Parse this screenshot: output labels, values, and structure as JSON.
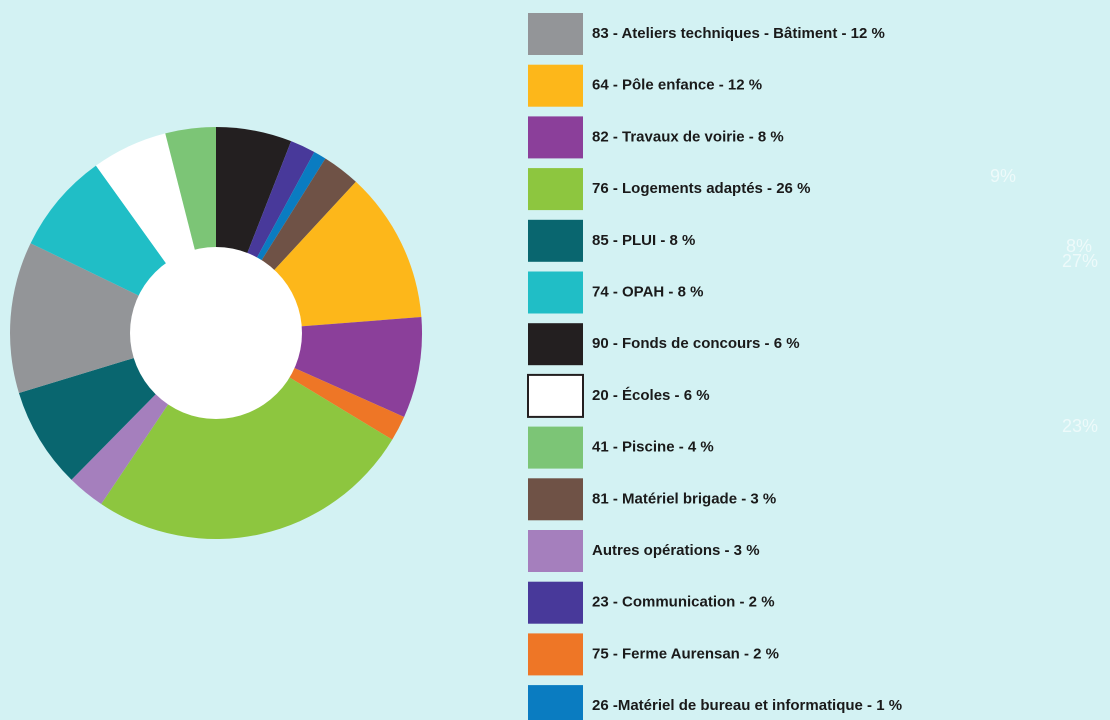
{
  "chart_data": {
    "type": "donut",
    "categories": [
      "90 - Fonds de concours - 6 %",
      "23 - Communication - 2 %",
      "26 -Matériel de bureau et informatique - 1 %",
      "81 - Matériel brigade - 3 %",
      "64 - Pôle enfance - 12 %",
      "82 - Travaux de voirie - 8 %",
      "75 - Ferme Aurensan - 2 %",
      "76 - Logements adaptés - 26 %",
      "Autres opérations - 3 %",
      "85 - PLUI - 8 %",
      "83 - Ateliers techniques - Bâtiment - 12 %",
      "74 - OPAH - 8 %",
      "20 - Écoles - 6 %",
      "41 - Piscine - 4 %"
    ],
    "values": [
      6,
      2,
      1,
      3,
      12,
      8,
      2,
      26,
      3,
      8,
      12,
      8,
      6,
      4
    ],
    "colors": [
      "#231f20",
      "#48399a",
      "#0a7cc1",
      "#6f5246",
      "#fdb71a",
      "#8b3f9a",
      "#ee7626",
      "#8dc63f",
      "#a57fbd",
      "#09666f",
      "#939598",
      "#20bec6",
      "#ffffff",
      "#7cc576"
    ],
    "annotations": [
      "9%",
      "8%",
      "27%",
      "23%"
    ]
  }
}
